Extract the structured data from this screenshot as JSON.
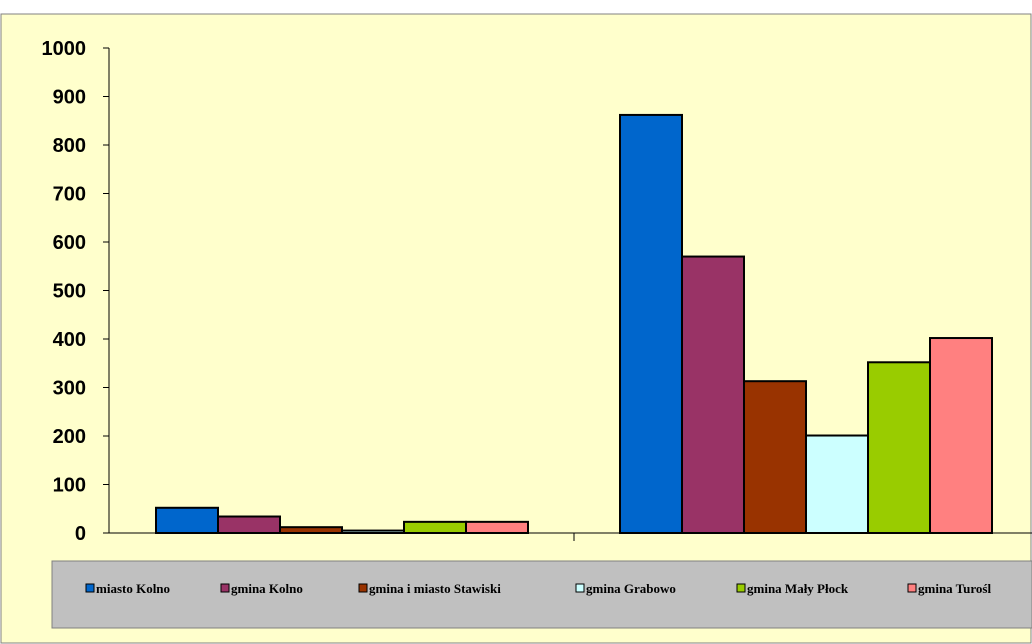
{
  "chart_data": {
    "type": "bar",
    "title": "",
    "xlabel": "",
    "ylabel": "",
    "ylim": [
      0,
      1000
    ],
    "yticks": [
      0,
      100,
      200,
      300,
      400,
      500,
      600,
      700,
      800,
      900,
      1000
    ],
    "categories": [
      "",
      ""
    ],
    "grid": false,
    "legend_position": "bottom",
    "series": [
      {
        "name": "miasto Kolno",
        "color": "#0066CC",
        "values": [
          52,
          862
        ]
      },
      {
        "name": "gmina Kolno",
        "color": "#993366",
        "values": [
          34,
          570
        ]
      },
      {
        "name": "gmina i miasto Stawiski",
        "color": "#993300",
        "values": [
          12,
          313
        ]
      },
      {
        "name": "gmina Grabowo",
        "color": "#CCFFFF",
        "values": [
          5,
          201
        ]
      },
      {
        "name": "gmina Mały Płock",
        "color": "#99CC00",
        "values": [
          23,
          352
        ]
      },
      {
        "name": "gmina Turośl",
        "color": "#FF8080",
        "values": [
          23,
          402
        ]
      }
    ]
  },
  "colors": {
    "plot_background": "#FFFFCC",
    "legend_background": "#C0C0C0"
  }
}
